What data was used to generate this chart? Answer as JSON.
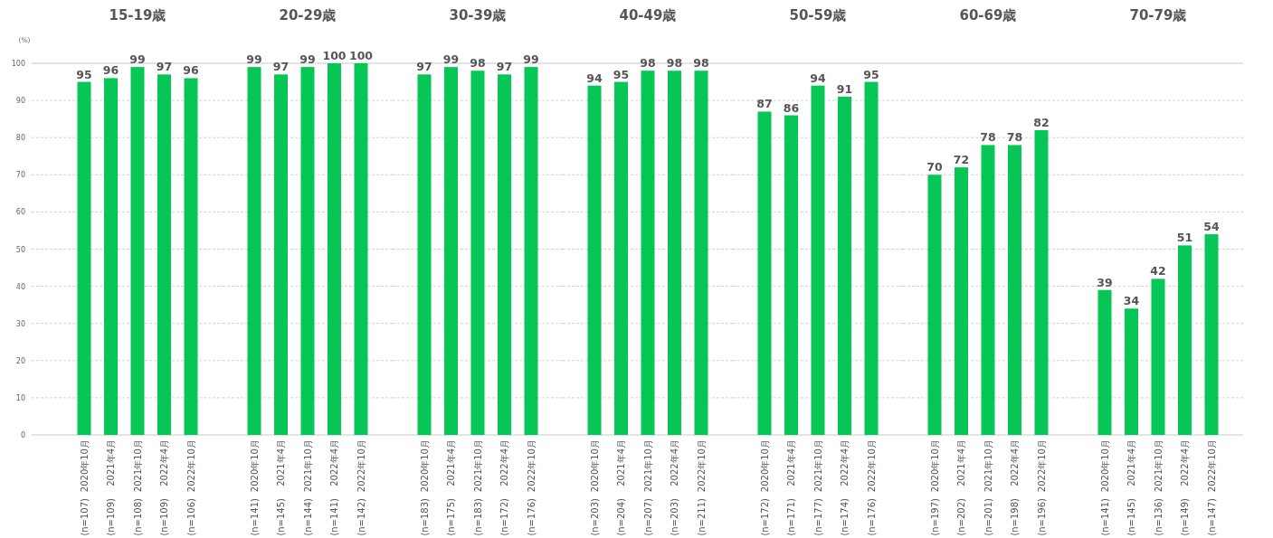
{
  "chart_data": [
    {
      "type": "bar",
      "title": "15-19歳",
      "ylabel": "(%)",
      "categories": [
        "2020年10月 (n=107)",
        "2021年4月 (n=109)",
        "2021年10月 (n=108)",
        "2022年4月 (n=109)",
        "2022年10月 (n=106)"
      ],
      "values": [
        95,
        96,
        99,
        97,
        96
      ],
      "color": "#06c755",
      "ylim": [
        0,
        100
      ],
      "yticks": [
        0,
        10,
        20,
        30,
        40,
        50,
        60,
        70,
        80,
        90,
        100
      ],
      "grid": "y",
      "data_labels": true
    },
    {
      "type": "bar",
      "title": "20-29歳",
      "categories": [
        "2020年10月 (n=141)",
        "2021年4月 (n=145)",
        "2021年10月 (n=144)",
        "2022年4月 (n=141)",
        "2022年10月 (n=142)"
      ],
      "values": [
        99,
        97,
        99,
        100,
        100
      ],
      "color": "#06c755",
      "ylim": [
        0,
        100
      ],
      "yticks": [
        0,
        10,
        20,
        30,
        40,
        50,
        60,
        70,
        80,
        90,
        100
      ],
      "grid": "y",
      "data_labels": true,
      "tick_labels": "x"
    },
    {
      "type": "bar",
      "title": "30-39歳",
      "categories": [
        "2020年10月 (n=183)",
        "2021年4月 (n=175)",
        "2021年10月 (n=183)",
        "2022年4月 (n=172)",
        "2022年10月 (n=176)"
      ],
      "values": [
        97,
        99,
        98,
        97,
        99
      ],
      "color": "#06c755",
      "ylim": [
        0,
        100
      ],
      "yticks": [
        0,
        10,
        20,
        30,
        40,
        50,
        60,
        70,
        80,
        90,
        100
      ],
      "grid": "y",
      "data_labels": true,
      "tick_labels": "x"
    },
    {
      "type": "bar",
      "title": "40-49歳",
      "categories": [
        "2020年10月 (n=203)",
        "2021年4月 (n=204)",
        "2021年10月 (n=207)",
        "2022年4月 (n=203)",
        "2022年10月 (n=211)"
      ],
      "values": [
        94,
        95,
        98,
        98,
        98
      ],
      "color": "#06c755",
      "ylim": [
        0,
        100
      ],
      "yticks": [
        0,
        10,
        20,
        30,
        40,
        50,
        60,
        70,
        80,
        90,
        100
      ],
      "grid": "y",
      "data_labels": true,
      "tick_labels": "x"
    },
    {
      "type": "bar",
      "title": "50-59歳",
      "categories": [
        "2020年10月 (n=172)",
        "2021年4月 (n=171)",
        "2021年10月 (n=177)",
        "2022年4月 (n=174)",
        "2022年10月 (n=176)"
      ],
      "values": [
        87,
        86,
        94,
        91,
        95
      ],
      "color": "#06c755",
      "ylim": [
        0,
        100
      ],
      "yticks": [
        0,
        10,
        20,
        30,
        40,
        50,
        60,
        70,
        80,
        90,
        100
      ],
      "grid": "y",
      "data_labels": true,
      "tick_labels": "x"
    },
    {
      "type": "bar",
      "title": "60-69歳",
      "categories": [
        "2020年10月 (n=197)",
        "2021年4月 (n=202)",
        "2021年10月 (n=201)",
        "2022年4月 (n=198)",
        "2022年10月 (n=196)"
      ],
      "values": [
        70,
        72,
        78,
        78,
        82
      ],
      "color": "#06c755",
      "ylim": [
        0,
        100
      ],
      "yticks": [
        0,
        10,
        20,
        30,
        40,
        50,
        60,
        70,
        80,
        90,
        100
      ],
      "grid": "y",
      "data_labels": true,
      "tick_labels": "x"
    },
    {
      "type": "bar",
      "title": "70-79歳",
      "categories": [
        "2020年10月 (n=141)",
        "2021年4月 (n=145)",
        "2021年10月 (n=136)",
        "2022年4月 (n=149)",
        "2022年10月 (n=147)"
      ],
      "values": [
        39,
        34,
        42,
        51,
        54
      ],
      "color": "#06c755",
      "ylim": [
        0,
        100
      ],
      "yticks": [
        0,
        10,
        20,
        30,
        40,
        50,
        60,
        70,
        80,
        90,
        100
      ],
      "grid": "y",
      "data_labels": true,
      "tick_labels": "x"
    }
  ]
}
